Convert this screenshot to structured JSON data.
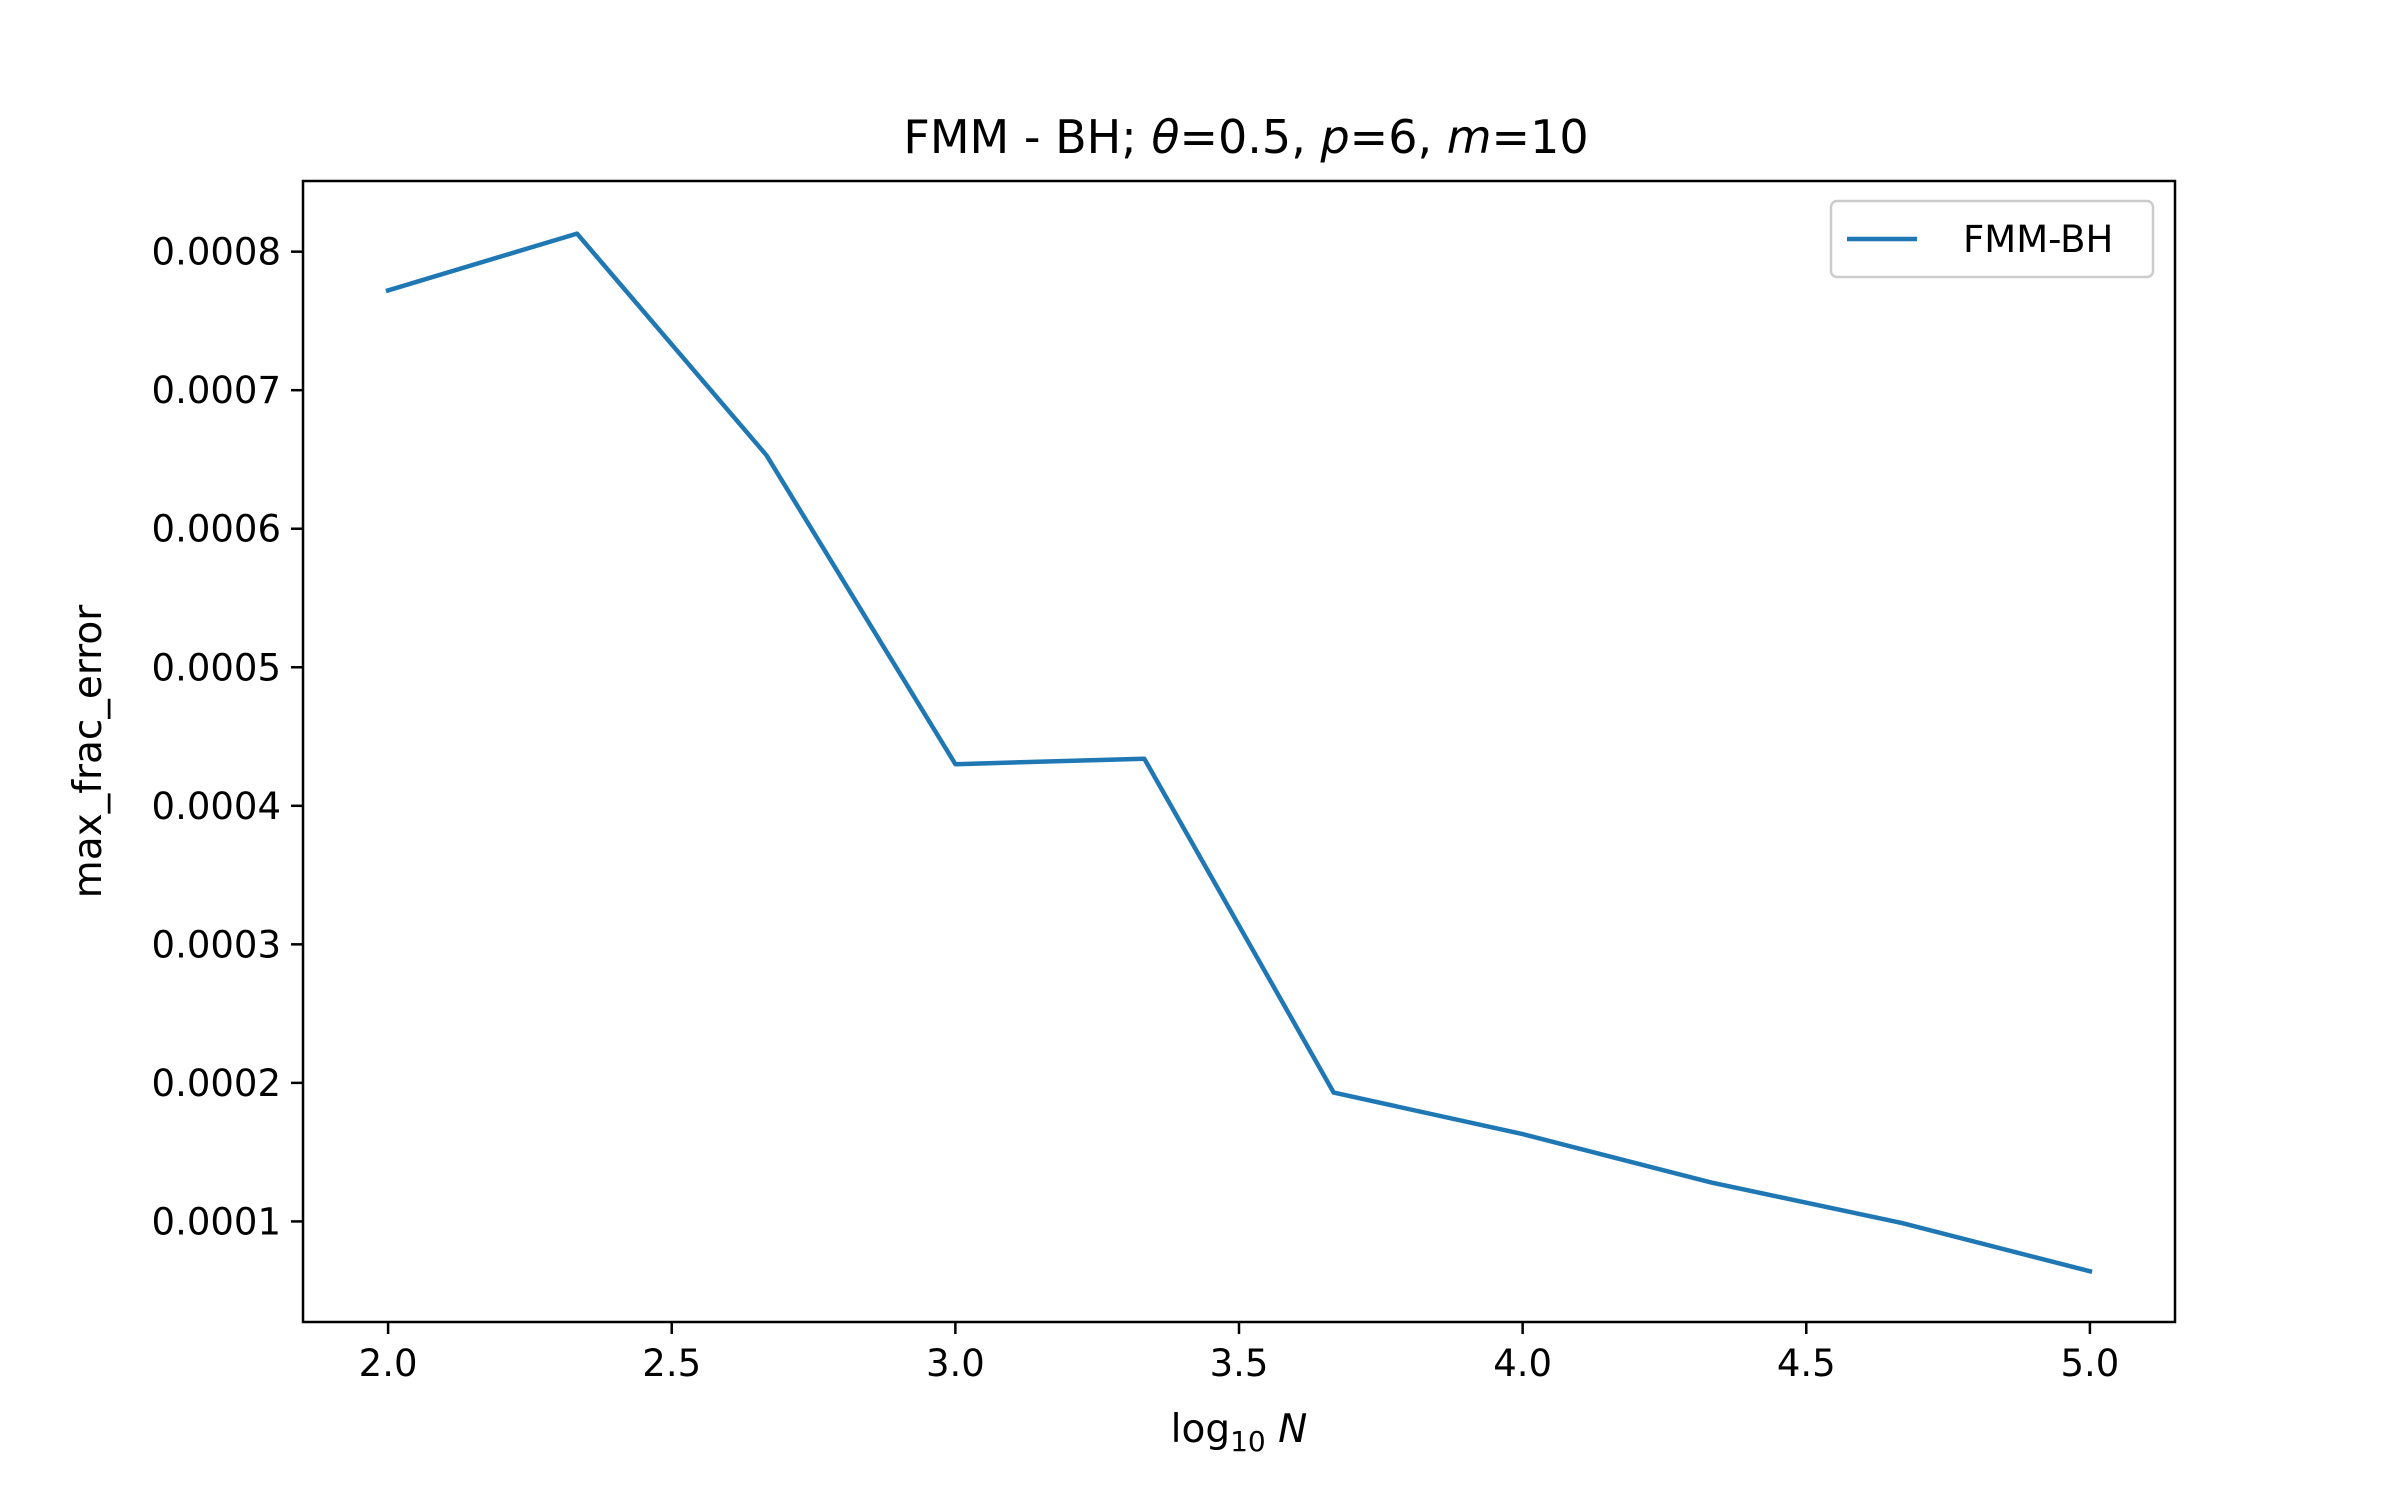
{
  "chart_data": {
    "type": "line",
    "title": "FMM - BH;",
    "title_params": [
      {
        "symbol": "θ",
        "value": "=0.5, "
      },
      {
        "symbol": "p",
        "value": "=6, "
      },
      {
        "symbol": "m",
        "value": "=10"
      }
    ],
    "xlabel": {
      "base": "log",
      "sub": "10",
      "var": "N"
    },
    "ylabel": "max_frac_error",
    "xlim": [
      1.85,
      5.15
    ],
    "ylim": [
      2.74e-05,
      0.000851
    ],
    "xticks": [
      2.0,
      2.5,
      3.0,
      3.5,
      4.0,
      4.5,
      5.0
    ],
    "xtick_labels": [
      "2.0",
      "2.5",
      "3.0",
      "3.5",
      "4.0",
      "4.5",
      "5.0"
    ],
    "yticks": [
      0.0001,
      0.0002,
      0.0003,
      0.0004,
      0.0005,
      0.0006,
      0.0007,
      0.0008
    ],
    "ytick_labels": [
      "0.0001",
      "0.0002",
      "0.0003",
      "0.0004",
      "0.0005",
      "0.0006",
      "0.0007",
      "0.0008"
    ],
    "grid": false,
    "legend": "top-right",
    "series": [
      {
        "name": "FMM-BH",
        "color": "#1f77b4",
        "x": [
          2.0,
          2.333,
          2.667,
          3.0,
          3.333,
          3.667,
          4.0,
          4.333,
          4.667,
          5.0
        ],
        "y": [
          0.000772,
          0.000813,
          0.000653,
          0.00043,
          0.000434,
          0.000193,
          0.000163,
          0.000128,
          9.9e-05,
          6.4e-05
        ]
      }
    ]
  }
}
